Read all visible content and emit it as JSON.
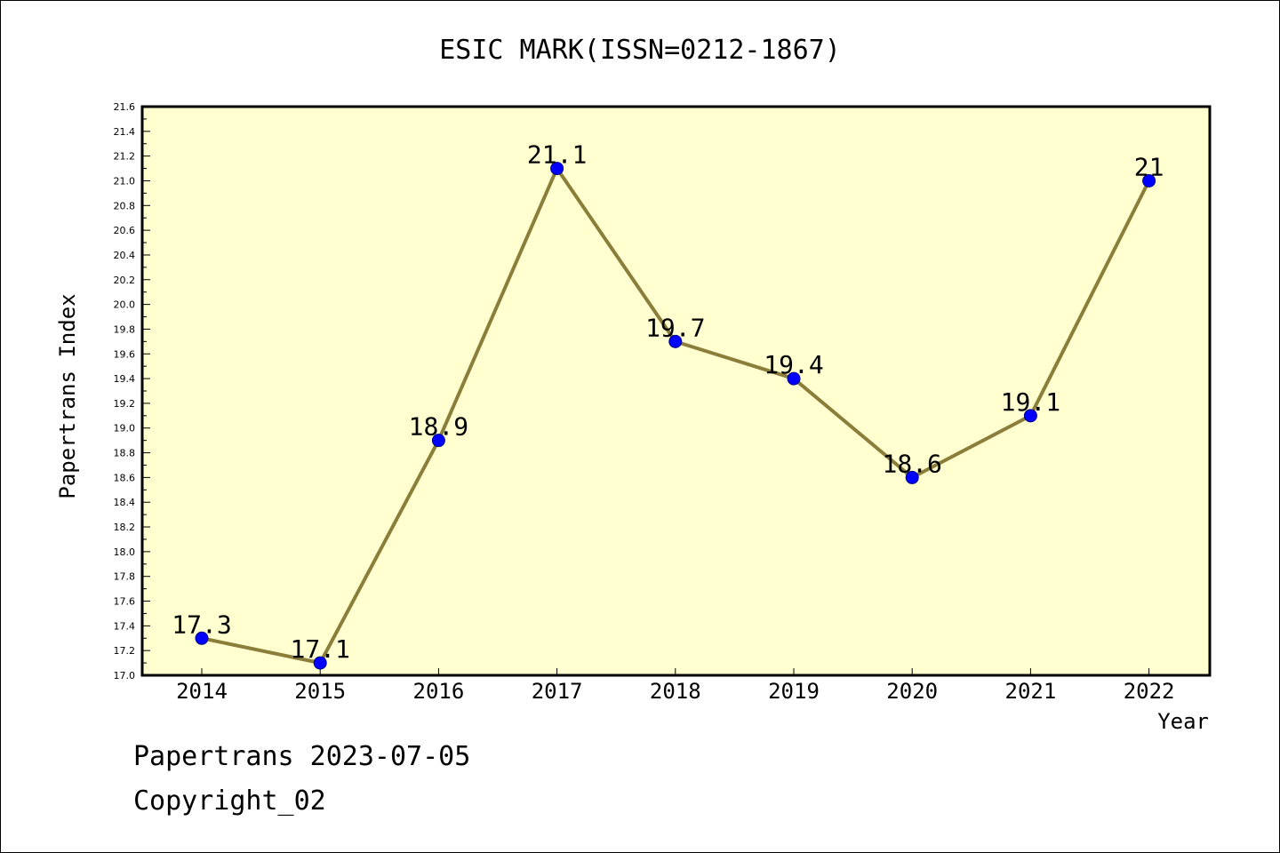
{
  "chart_data": {
    "type": "line",
    "title": "ESIC MARK(ISSN=0212-1867)",
    "xlabel": "Year",
    "ylabel": "Papertrans Index",
    "categories": [
      "2014",
      "2015",
      "2016",
      "2017",
      "2018",
      "2019",
      "2020",
      "2021",
      "2022"
    ],
    "values": [
      17.3,
      17.1,
      18.9,
      21.1,
      19.7,
      19.4,
      18.6,
      19.1,
      21
    ],
    "data_labels": [
      "17.3",
      "17.1",
      "18.9",
      "21.1",
      "19.7",
      "19.4",
      "18.6",
      "19.1",
      "21"
    ],
    "ylim": [
      17.0,
      21.6
    ],
    "yticks": [
      "17.0",
      "17.2",
      "17.4",
      "17.6",
      "17.8",
      "18.0",
      "18.2",
      "18.4",
      "18.6",
      "18.8",
      "19.0",
      "19.2",
      "19.4",
      "19.6",
      "19.8",
      "20.0",
      "20.2",
      "20.4",
      "20.6",
      "20.8",
      "21.0",
      "21.2",
      "21.4",
      "21.6"
    ],
    "grid": false,
    "colors": {
      "plot_background": "#ffffd0",
      "line": "#8b7d3a",
      "marker": "#0000ff"
    }
  },
  "footer": {
    "source_line": "Papertrans 2023-07-05",
    "copyright_line": "Copyright_02"
  }
}
